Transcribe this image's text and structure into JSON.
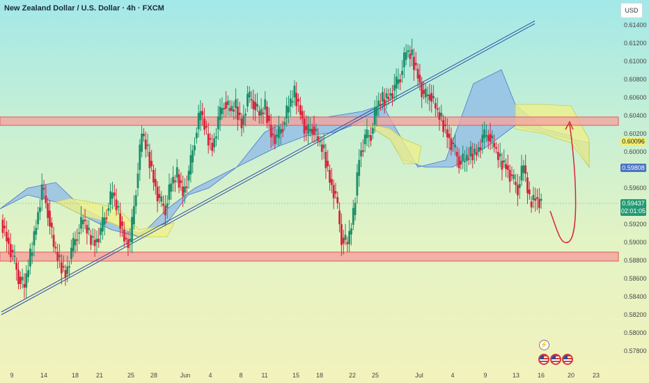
{
  "header": {
    "title": "New Zealand Dollar / U.S. Dollar · 4h · FXCM",
    "currency": "USD"
  },
  "chart_data": {
    "type": "candlestick",
    "symbol": "NZDUSD",
    "timeframe": "4h",
    "y_ticks": [
      "0.61400",
      "0.61200",
      "0.61000",
      "0.60800",
      "0.60600",
      "0.60400",
      "0.60200",
      "0.60000",
      "0.59800",
      "0.59600",
      "0.59400",
      "0.59200",
      "0.59000",
      "0.58800",
      "0.58600",
      "0.58400",
      "0.58200",
      "0.58000",
      "0.57800"
    ],
    "x_ticks": [
      "9",
      "14",
      "18",
      "21",
      "25",
      "28",
      "Jun",
      "4",
      "8",
      "11",
      "15",
      "18",
      "22",
      "25",
      "Jul",
      "4",
      "9",
      "13",
      "16",
      "20",
      "23"
    ],
    "price_tags": {
      "level_1": "0.60096",
      "level_2": "0.59808",
      "current": "0.59437",
      "countdown": "02:01:05"
    },
    "price_path": [
      0.5925,
      0.5905,
      0.5885,
      0.5862,
      0.585,
      0.5885,
      0.592,
      0.596,
      0.5935,
      0.5895,
      0.5878,
      0.5865,
      0.589,
      0.591,
      0.5925,
      0.5908,
      0.59,
      0.5912,
      0.5935,
      0.5955,
      0.5932,
      0.5905,
      0.59,
      0.596,
      0.602,
      0.6,
      0.597,
      0.5945,
      0.5938,
      0.5965,
      0.5975,
      0.5955,
      0.5975,
      0.6015,
      0.6045,
      0.602,
      0.6005,
      0.6035,
      0.6055,
      0.6045,
      0.605,
      0.603,
      0.606,
      0.6055,
      0.604,
      0.605,
      0.602,
      0.6015,
      0.603,
      0.605,
      0.6065,
      0.6045,
      0.602,
      0.6028,
      0.6012,
      0.6,
      0.597,
      0.595,
      0.5905,
      0.5898,
      0.593,
      0.5995,
      0.6015,
      0.602,
      0.605,
      0.6058,
      0.6062,
      0.607,
      0.6085,
      0.611,
      0.6105,
      0.6085,
      0.606,
      0.6065,
      0.6048,
      0.6035,
      0.602,
      0.6005,
      0.599,
      0.599,
      0.5998,
      0.6,
      0.6015,
      0.602,
      0.6005,
      0.599,
      0.5985,
      0.597,
      0.596,
      0.5985,
      0.5945,
      0.595,
      0.5944
    ],
    "resistance_zone": [
      0.603,
      0.6038
    ],
    "support_zone": [
      0.5882,
      0.5893
    ],
    "series": [
      {
        "name": "",
        "color": "#2d4ea0"
      }
    ]
  }
}
